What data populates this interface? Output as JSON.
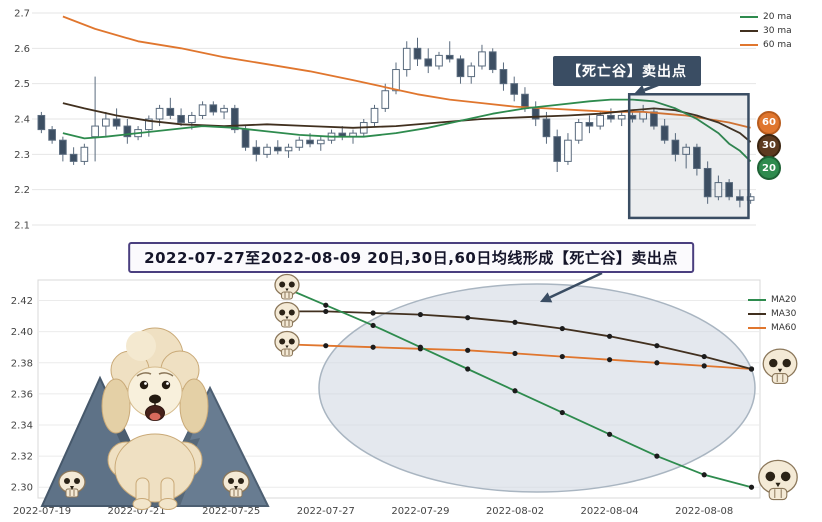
{
  "title_banner": {
    "text": "2022-07-27至2022-08-09 20日,30日,60日均线形成【死亡谷】卖出点",
    "border_color": "#4a3f7f"
  },
  "top_chart": {
    "annotation_label": "【死亡谷】卖出点",
    "legend": [
      {
        "label": "20 ma",
        "color": "#2e8b4e"
      },
      {
        "label": "30 ma",
        "color": "#41301f"
      },
      {
        "label": "60 ma",
        "color": "#e0762e"
      }
    ],
    "badges": [
      {
        "label": "60",
        "value": 2.39,
        "color": "#e0762e",
        "border": "#b85c1e"
      },
      {
        "label": "30",
        "value": 2.325,
        "color": "#5d3a1f",
        "border": "#3a2410"
      },
      {
        "label": "20",
        "value": 2.26,
        "color": "#2e8b4e",
        "border": "#1e6235"
      }
    ]
  },
  "bottom_chart": {
    "legend": [
      {
        "label": "MA20",
        "color": "#2e8b4e"
      },
      {
        "label": "MA30",
        "color": "#41301f"
      },
      {
        "label": "MA60",
        "color": "#e0762e"
      }
    ]
  },
  "colors": {
    "candle_up": "#ffffff",
    "candle_down": "#3d4f63",
    "candle_stroke": "#5a6b7e",
    "highlight": "#3a4d63",
    "ellipse_fill": "#cdd6e0",
    "ellipse_stroke": "#a9b5c1",
    "grid": "#e6e6e6",
    "axis_text": "#444444"
  },
  "icons": {
    "skull": "skull-icon",
    "poodle": "poodle-dog-illustration",
    "mountain": "mountain-icon",
    "arrow": "annotation-arrow"
  },
  "chart_data": [
    {
      "type": "candlestick",
      "panel": "top",
      "title": "",
      "ylim": [
        2.08,
        2.72
      ],
      "y_ticks": [
        "2.1",
        "2.2",
        "2.3",
        "2.4",
        "2.5",
        "2.6",
        "2.7"
      ],
      "grid": true,
      "legend_position": "top-right",
      "candles_ohlc": [
        [
          2.41,
          2.42,
          2.36,
          2.37
        ],
        [
          2.37,
          2.38,
          2.33,
          2.34
        ],
        [
          2.34,
          2.35,
          2.28,
          2.3
        ],
        [
          2.3,
          2.32,
          2.27,
          2.28
        ],
        [
          2.28,
          2.33,
          2.27,
          2.32
        ],
        [
          2.35,
          2.52,
          2.28,
          2.38
        ],
        [
          2.38,
          2.42,
          2.35,
          2.4
        ],
        [
          2.4,
          2.43,
          2.37,
          2.38
        ],
        [
          2.38,
          2.4,
          2.33,
          2.35
        ],
        [
          2.35,
          2.38,
          2.34,
          2.37
        ],
        [
          2.37,
          2.41,
          2.35,
          2.4
        ],
        [
          2.4,
          2.44,
          2.38,
          2.43
        ],
        [
          2.43,
          2.46,
          2.4,
          2.41
        ],
        [
          2.41,
          2.43,
          2.38,
          2.39
        ],
        [
          2.39,
          2.42,
          2.37,
          2.41
        ],
        [
          2.41,
          2.45,
          2.4,
          2.44
        ],
        [
          2.44,
          2.45,
          2.41,
          2.42
        ],
        [
          2.42,
          2.44,
          2.4,
          2.43
        ],
        [
          2.43,
          2.44,
          2.36,
          2.37
        ],
        [
          2.37,
          2.38,
          2.31,
          2.32
        ],
        [
          2.32,
          2.34,
          2.28,
          2.3
        ],
        [
          2.3,
          2.33,
          2.29,
          2.32
        ],
        [
          2.32,
          2.34,
          2.3,
          2.31
        ],
        [
          2.31,
          2.33,
          2.29,
          2.32
        ],
        [
          2.32,
          2.35,
          2.31,
          2.34
        ],
        [
          2.34,
          2.36,
          2.32,
          2.33
        ],
        [
          2.33,
          2.35,
          2.31,
          2.34
        ],
        [
          2.34,
          2.37,
          2.33,
          2.36
        ],
        [
          2.36,
          2.38,
          2.34,
          2.35
        ],
        [
          2.35,
          2.37,
          2.33,
          2.36
        ],
        [
          2.36,
          2.4,
          2.35,
          2.39
        ],
        [
          2.39,
          2.44,
          2.38,
          2.43
        ],
        [
          2.43,
          2.5,
          2.42,
          2.48
        ],
        [
          2.48,
          2.56,
          2.47,
          2.54
        ],
        [
          2.54,
          2.62,
          2.52,
          2.6
        ],
        [
          2.6,
          2.63,
          2.55,
          2.57
        ],
        [
          2.57,
          2.6,
          2.53,
          2.55
        ],
        [
          2.55,
          2.59,
          2.54,
          2.58
        ],
        [
          2.58,
          2.62,
          2.56,
          2.57
        ],
        [
          2.57,
          2.58,
          2.5,
          2.52
        ],
        [
          2.52,
          2.56,
          2.5,
          2.55
        ],
        [
          2.55,
          2.61,
          2.54,
          2.59
        ],
        [
          2.59,
          2.6,
          2.53,
          2.54
        ],
        [
          2.54,
          2.56,
          2.48,
          2.5
        ],
        [
          2.5,
          2.52,
          2.45,
          2.47
        ],
        [
          2.47,
          2.49,
          2.42,
          2.43
        ],
        [
          2.43,
          2.45,
          2.38,
          2.4
        ],
        [
          2.4,
          2.42,
          2.33,
          2.35
        ],
        [
          2.35,
          2.37,
          2.25,
          2.28
        ],
        [
          2.28,
          2.36,
          2.27,
          2.34
        ],
        [
          2.34,
          2.4,
          2.33,
          2.39
        ],
        [
          2.39,
          2.41,
          2.36,
          2.38
        ],
        [
          2.38,
          2.42,
          2.37,
          2.41
        ],
        [
          2.41,
          2.43,
          2.39,
          2.4
        ],
        [
          2.4,
          2.42,
          2.38,
          2.41
        ],
        [
          2.41,
          2.42,
          2.39,
          2.4
        ],
        [
          2.4,
          2.44,
          2.39,
          2.42
        ],
        [
          2.42,
          2.43,
          2.37,
          2.38
        ],
        [
          2.38,
          2.4,
          2.33,
          2.34
        ],
        [
          2.34,
          2.36,
          2.28,
          2.3
        ],
        [
          2.3,
          2.33,
          2.26,
          2.32
        ],
        [
          2.32,
          2.33,
          2.24,
          2.26
        ],
        [
          2.26,
          2.28,
          2.16,
          2.18
        ],
        [
          2.18,
          2.24,
          2.17,
          2.22
        ],
        [
          2.22,
          2.23,
          2.17,
          2.18
        ],
        [
          2.18,
          2.2,
          2.15,
          2.17
        ],
        [
          2.17,
          2.19,
          2.16,
          2.18
        ]
      ],
      "series": [
        {
          "name": "60 ma",
          "color": "#e0762e",
          "points": [
            [
              2,
              2.69
            ],
            [
              5,
              2.655
            ],
            [
              9,
              2.62
            ],
            [
              13,
              2.6
            ],
            [
              17,
              2.575
            ],
            [
              21,
              2.555
            ],
            [
              25,
              2.535
            ],
            [
              29,
              2.51
            ],
            [
              32,
              2.49
            ],
            [
              35,
              2.47
            ],
            [
              38,
              2.455
            ],
            [
              41,
              2.445
            ],
            [
              44,
              2.435
            ],
            [
              47,
              2.43
            ],
            [
              50,
              2.425
            ],
            [
              53,
              2.42
            ],
            [
              56,
              2.42
            ],
            [
              58,
              2.415
            ],
            [
              60,
              2.41
            ],
            [
              62,
              2.4
            ],
            [
              64,
              2.39
            ],
            [
              66,
              2.375
            ]
          ]
        },
        {
          "name": "30 ma",
          "color": "#41301f",
          "points": [
            [
              2,
              2.445
            ],
            [
              4,
              2.43
            ],
            [
              7,
              2.41
            ],
            [
              10,
              2.395
            ],
            [
              13,
              2.385
            ],
            [
              17,
              2.38
            ],
            [
              21,
              2.385
            ],
            [
              25,
              2.38
            ],
            [
              29,
              2.375
            ],
            [
              33,
              2.38
            ],
            [
              37,
              2.39
            ],
            [
              41,
              2.4
            ],
            [
              45,
              2.405
            ],
            [
              49,
              2.41
            ],
            [
              52,
              2.415
            ],
            [
              55,
              2.425
            ],
            [
              57,
              2.43
            ],
            [
              59,
              2.425
            ],
            [
              61,
              2.41
            ],
            [
              63,
              2.39
            ],
            [
              64,
              2.375
            ],
            [
              65,
              2.36
            ],
            [
              66,
              2.335
            ]
          ]
        },
        {
          "name": "20 ma",
          "color": "#2e8b4e",
          "points": [
            [
              2,
              2.36
            ],
            [
              4,
              2.345
            ],
            [
              6,
              2.35
            ],
            [
              9,
              2.36
            ],
            [
              12,
              2.37
            ],
            [
              15,
              2.38
            ],
            [
              18,
              2.375
            ],
            [
              21,
              2.365
            ],
            [
              24,
              2.355
            ],
            [
              27,
              2.35
            ],
            [
              30,
              2.35
            ],
            [
              33,
              2.36
            ],
            [
              36,
              2.375
            ],
            [
              39,
              2.395
            ],
            [
              42,
              2.415
            ],
            [
              45,
              2.43
            ],
            [
              48,
              2.44
            ],
            [
              51,
              2.45
            ],
            [
              53,
              2.455
            ],
            [
              55,
              2.455
            ],
            [
              57,
              2.45
            ],
            [
              59,
              2.43
            ],
            [
              61,
              2.4
            ],
            [
              63,
              2.36
            ],
            [
              64,
              2.33
            ],
            [
              65,
              2.31
            ],
            [
              66,
              2.28
            ]
          ]
        }
      ],
      "highlight_box": {
        "x0": 55.2,
        "x1": 66.3,
        "v0": 2.12,
        "v1": 2.47
      },
      "annotation": {
        "text": "【死亡谷】卖出点"
      }
    },
    {
      "type": "line",
      "panel": "bottom",
      "title": "",
      "ylim": [
        2.295,
        2.43
      ],
      "y_ticks": [
        "2.30",
        "2.32",
        "2.34",
        "2.36",
        "2.38",
        "2.40",
        "2.42"
      ],
      "x_tick_labels": [
        "2022-07-19",
        "2022-07-21",
        "2022-07-25",
        "2022-07-27",
        "2022-07-29",
        "2022-08-02",
        "2022-08-04",
        "2022-08-08"
      ],
      "x_tick_day_index": [
        0,
        2,
        4,
        6,
        8,
        10,
        12,
        14
      ],
      "axis_day_span": 16,
      "data_start_day_index": 5,
      "dates": [
        "2022-07-26",
        "2022-07-27",
        "2022-07-28",
        "2022-07-29",
        "2022-08-01",
        "2022-08-02",
        "2022-08-03",
        "2022-08-04",
        "2022-08-05",
        "2022-08-08",
        "2022-08-09"
      ],
      "series": [
        {
          "name": "MA20",
          "color": "#2e8b4e",
          "values": [
            2.43,
            2.417,
            2.404,
            2.39,
            2.376,
            2.362,
            2.348,
            2.334,
            2.32,
            2.308,
            2.3
          ]
        },
        {
          "name": "MA30",
          "color": "#41301f",
          "values": [
            2.413,
            2.413,
            2.412,
            2.411,
            2.409,
            2.406,
            2.402,
            2.397,
            2.391,
            2.384,
            2.376
          ]
        },
        {
          "name": "MA60",
          "color": "#e0762e",
          "values": [
            2.392,
            2.391,
            2.39,
            2.389,
            2.388,
            2.386,
            2.384,
            2.382,
            2.38,
            2.378,
            2.376
          ]
        }
      ],
      "legend_position": "right",
      "highlight_ellipse": true
    }
  ]
}
